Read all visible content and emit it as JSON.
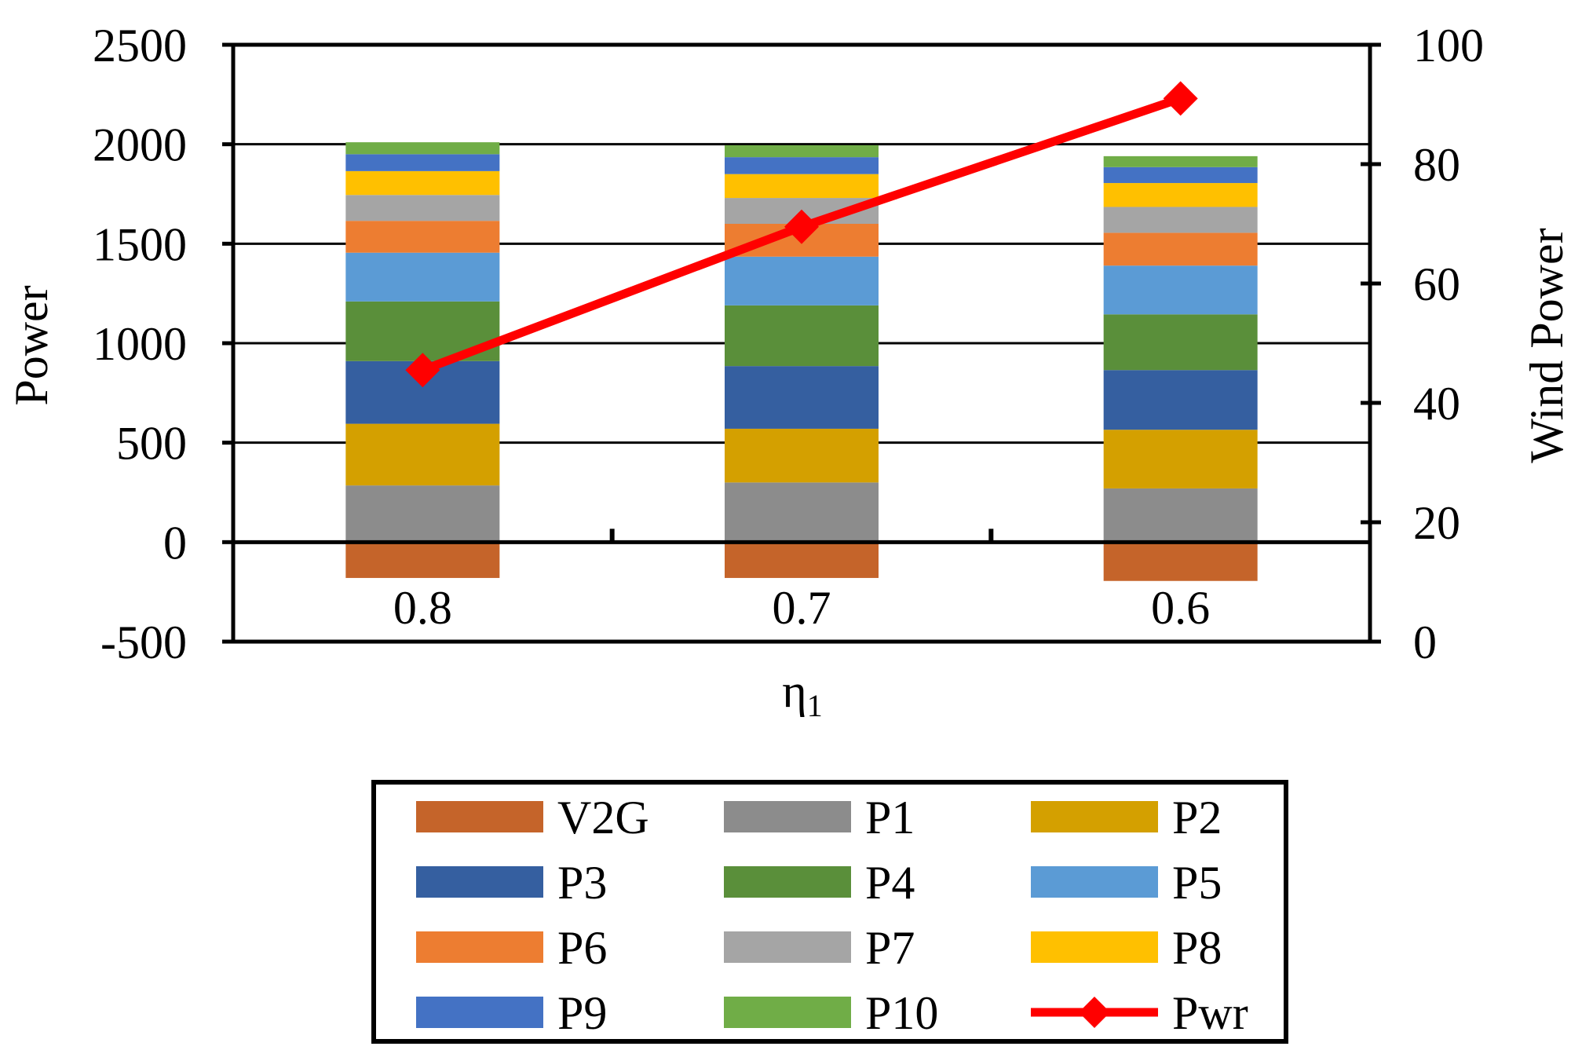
{
  "chart_data": {
    "type": "bar",
    "stacked": true,
    "categories": [
      "0.8",
      "0.7",
      "0.6"
    ],
    "xlabel": "η",
    "xlabel_sub": "1",
    "ylabel": "Power",
    "y2label": "Wind Power",
    "ylim": [
      -500,
      2500
    ],
    "y2lim": [
      0,
      100
    ],
    "yticks": [
      "2500",
      "2000",
      "1500",
      "1000",
      "500",
      "0",
      "-500"
    ],
    "y2ticks": [
      "100",
      "80",
      "60",
      "40",
      "20",
      "0"
    ],
    "grid": true,
    "legend_position": "bottom",
    "series": [
      {
        "name": "V2G",
        "color": "#C5642A",
        "values": [
          -180,
          -180,
          -195
        ]
      },
      {
        "name": "P1",
        "color": "#8C8C8C",
        "values": [
          285,
          300,
          270
        ]
      },
      {
        "name": "P2",
        "color": "#D4A000",
        "values": [
          310,
          270,
          295
        ]
      },
      {
        "name": "P3",
        "color": "#355FA0",
        "values": [
          315,
          315,
          300
        ]
      },
      {
        "name": "P4",
        "color": "#5A8F3A",
        "values": [
          300,
          305,
          280
        ]
      },
      {
        "name": "P5",
        "color": "#5B9BD5",
        "values": [
          245,
          245,
          245
        ]
      },
      {
        "name": "P6",
        "color": "#ED7D31",
        "values": [
          160,
          165,
          165
        ]
      },
      {
        "name": "P7",
        "color": "#A5A5A5",
        "values": [
          130,
          130,
          130
        ]
      },
      {
        "name": "P8",
        "color": "#FFC000",
        "values": [
          120,
          120,
          120
        ]
      },
      {
        "name": "P9",
        "color": "#4472C4",
        "values": [
          85,
          85,
          80
        ]
      },
      {
        "name": "P10",
        "color": "#70AD47",
        "values": [
          60,
          60,
          55
        ]
      }
    ],
    "line_series": {
      "name": "Pwr",
      "color": "#FF0000",
      "axis": "right",
      "values": [
        45.5,
        69.5,
        91
      ]
    }
  }
}
